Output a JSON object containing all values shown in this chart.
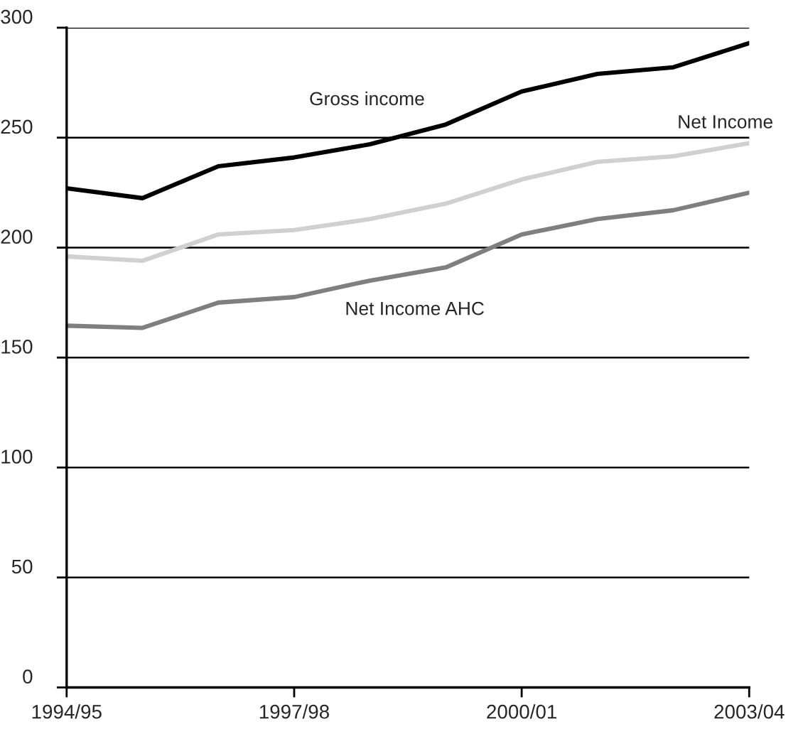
{
  "chart_data": {
    "type": "line",
    "categories": [
      "1994/95",
      null,
      null,
      "1997/98",
      null,
      null,
      "2000/01",
      null,
      null,
      "2003/04"
    ],
    "series": [
      {
        "name": "Gross income",
        "color": "#000000",
        "values": [
          227,
          222.5,
          237,
          241,
          247,
          256,
          271,
          279,
          282,
          293
        ]
      },
      {
        "name": "Net Income",
        "color": "#d0d0d0",
        "values": [
          196,
          194,
          206,
          208,
          213,
          220,
          231,
          239,
          241.5,
          247.5
        ]
      },
      {
        "name": "Net Income AHC",
        "color": "#7f7f7f",
        "values": [
          164.5,
          163.5,
          175,
          177.5,
          185,
          191,
          206,
          213,
          217,
          225
        ]
      }
    ],
    "ylim": [
      0,
      300
    ],
    "yticks": [
      0,
      50,
      100,
      150,
      200,
      250,
      300
    ],
    "grid": "y",
    "legend": false,
    "marker": "none",
    "line_style": "solid"
  }
}
